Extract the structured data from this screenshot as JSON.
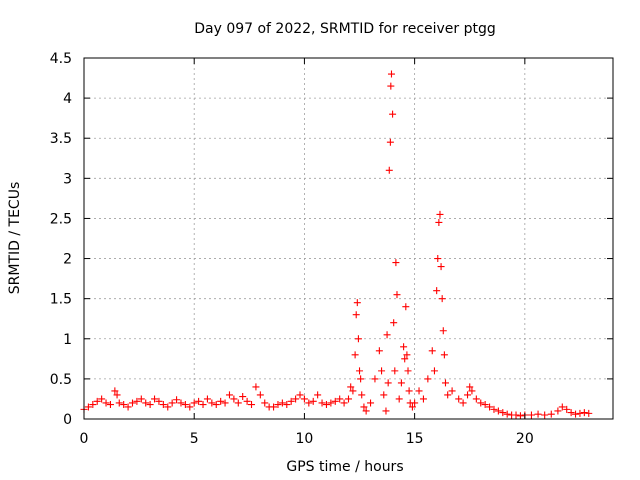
{
  "chart_data": {
    "type": "scatter",
    "title": "Day 097 of 2022, SRMTID for receiver ptgg",
    "xlabel": "GPS time / hours",
    "ylabel": "SRMTID / TECUs",
    "xlim": [
      0,
      24
    ],
    "ylim": [
      0,
      4.5
    ],
    "xticks": [
      0,
      5,
      10,
      15,
      20
    ],
    "yticks": [
      0,
      0.5,
      1,
      1.5,
      2,
      2.5,
      3,
      3.5,
      4,
      4.5
    ],
    "xtick_labels": [
      "0",
      "5",
      "10",
      "15",
      "20"
    ],
    "ytick_labels": [
      "0",
      "0.5",
      "1",
      "1.5",
      "2",
      "2.5",
      "3",
      "3.5",
      "4",
      "4.5"
    ],
    "grid": true,
    "marker": "+",
    "color": "#ff0000",
    "series": [
      {
        "name": "SRMTID",
        "x": [
          0.0,
          0.2,
          0.4,
          0.6,
          0.8,
          1.0,
          1.2,
          1.4,
          1.5,
          1.6,
          1.8,
          2.0,
          2.2,
          2.4,
          2.6,
          2.8,
          3.0,
          3.2,
          3.4,
          3.6,
          3.8,
          4.0,
          4.2,
          4.4,
          4.6,
          4.8,
          5.0,
          5.2,
          5.4,
          5.6,
          5.8,
          6.0,
          6.2,
          6.4,
          6.6,
          6.8,
          7.0,
          7.2,
          7.4,
          7.6,
          7.8,
          8.0,
          8.2,
          8.4,
          8.6,
          8.8,
          9.0,
          9.2,
          9.4,
          9.6,
          9.8,
          10.0,
          10.2,
          10.4,
          10.6,
          10.8,
          11.0,
          11.2,
          11.4,
          11.6,
          11.8,
          12.0,
          12.1,
          12.2,
          12.3,
          12.35,
          12.4,
          12.45,
          12.5,
          12.55,
          12.6,
          12.7,
          12.8,
          13.0,
          13.2,
          13.4,
          13.5,
          13.6,
          13.7,
          13.75,
          13.8,
          13.85,
          13.9,
          13.92,
          13.95,
          14.0,
          14.05,
          14.1,
          14.15,
          14.2,
          14.3,
          14.4,
          14.5,
          14.55,
          14.6,
          14.65,
          14.7,
          14.75,
          14.8,
          14.9,
          15.0,
          15.2,
          15.4,
          15.6,
          15.8,
          15.9,
          16.0,
          16.05,
          16.1,
          16.15,
          16.2,
          16.25,
          16.3,
          16.35,
          16.4,
          16.5,
          16.7,
          17.0,
          17.2,
          17.4,
          17.5,
          17.6,
          17.8,
          18.0,
          18.2,
          18.4,
          18.6,
          18.8,
          19.0,
          19.2,
          19.4,
          19.6,
          19.8,
          20.0,
          20.3,
          20.6,
          20.9,
          21.2,
          21.5,
          21.7,
          21.9,
          22.1,
          22.3,
          22.5,
          22.7,
          22.9
        ],
        "y": [
          0.12,
          0.15,
          0.18,
          0.22,
          0.25,
          0.2,
          0.18,
          0.35,
          0.3,
          0.2,
          0.18,
          0.15,
          0.2,
          0.22,
          0.25,
          0.2,
          0.18,
          0.25,
          0.22,
          0.18,
          0.15,
          0.2,
          0.24,
          0.2,
          0.18,
          0.15,
          0.2,
          0.22,
          0.18,
          0.25,
          0.2,
          0.18,
          0.22,
          0.2,
          0.3,
          0.25,
          0.2,
          0.28,
          0.22,
          0.18,
          0.4,
          0.3,
          0.2,
          0.15,
          0.15,
          0.18,
          0.2,
          0.18,
          0.22,
          0.25,
          0.3,
          0.25,
          0.2,
          0.22,
          0.3,
          0.2,
          0.18,
          0.2,
          0.22,
          0.25,
          0.2,
          0.25,
          0.4,
          0.35,
          0.8,
          1.3,
          1.45,
          1.0,
          0.6,
          0.5,
          0.3,
          0.15,
          0.1,
          0.2,
          0.5,
          0.85,
          0.6,
          0.3,
          0.1,
          1.05,
          0.45,
          3.1,
          3.45,
          4.15,
          4.3,
          3.8,
          1.2,
          0.6,
          1.95,
          1.55,
          0.25,
          0.45,
          0.9,
          0.75,
          1.4,
          0.8,
          0.6,
          0.35,
          0.2,
          0.15,
          0.2,
          0.35,
          0.25,
          0.5,
          0.85,
          0.6,
          1.6,
          2.0,
          2.45,
          2.55,
          1.9,
          1.5,
          1.1,
          0.8,
          0.45,
          0.3,
          0.35,
          0.25,
          0.2,
          0.3,
          0.4,
          0.35,
          0.25,
          0.2,
          0.18,
          0.15,
          0.12,
          0.1,
          0.08,
          0.06,
          0.05,
          0.05,
          0.04,
          0.05,
          0.05,
          0.06,
          0.05,
          0.06,
          0.1,
          0.15,
          0.12,
          0.08,
          0.06,
          0.07,
          0.08,
          0.07
        ]
      }
    ]
  }
}
